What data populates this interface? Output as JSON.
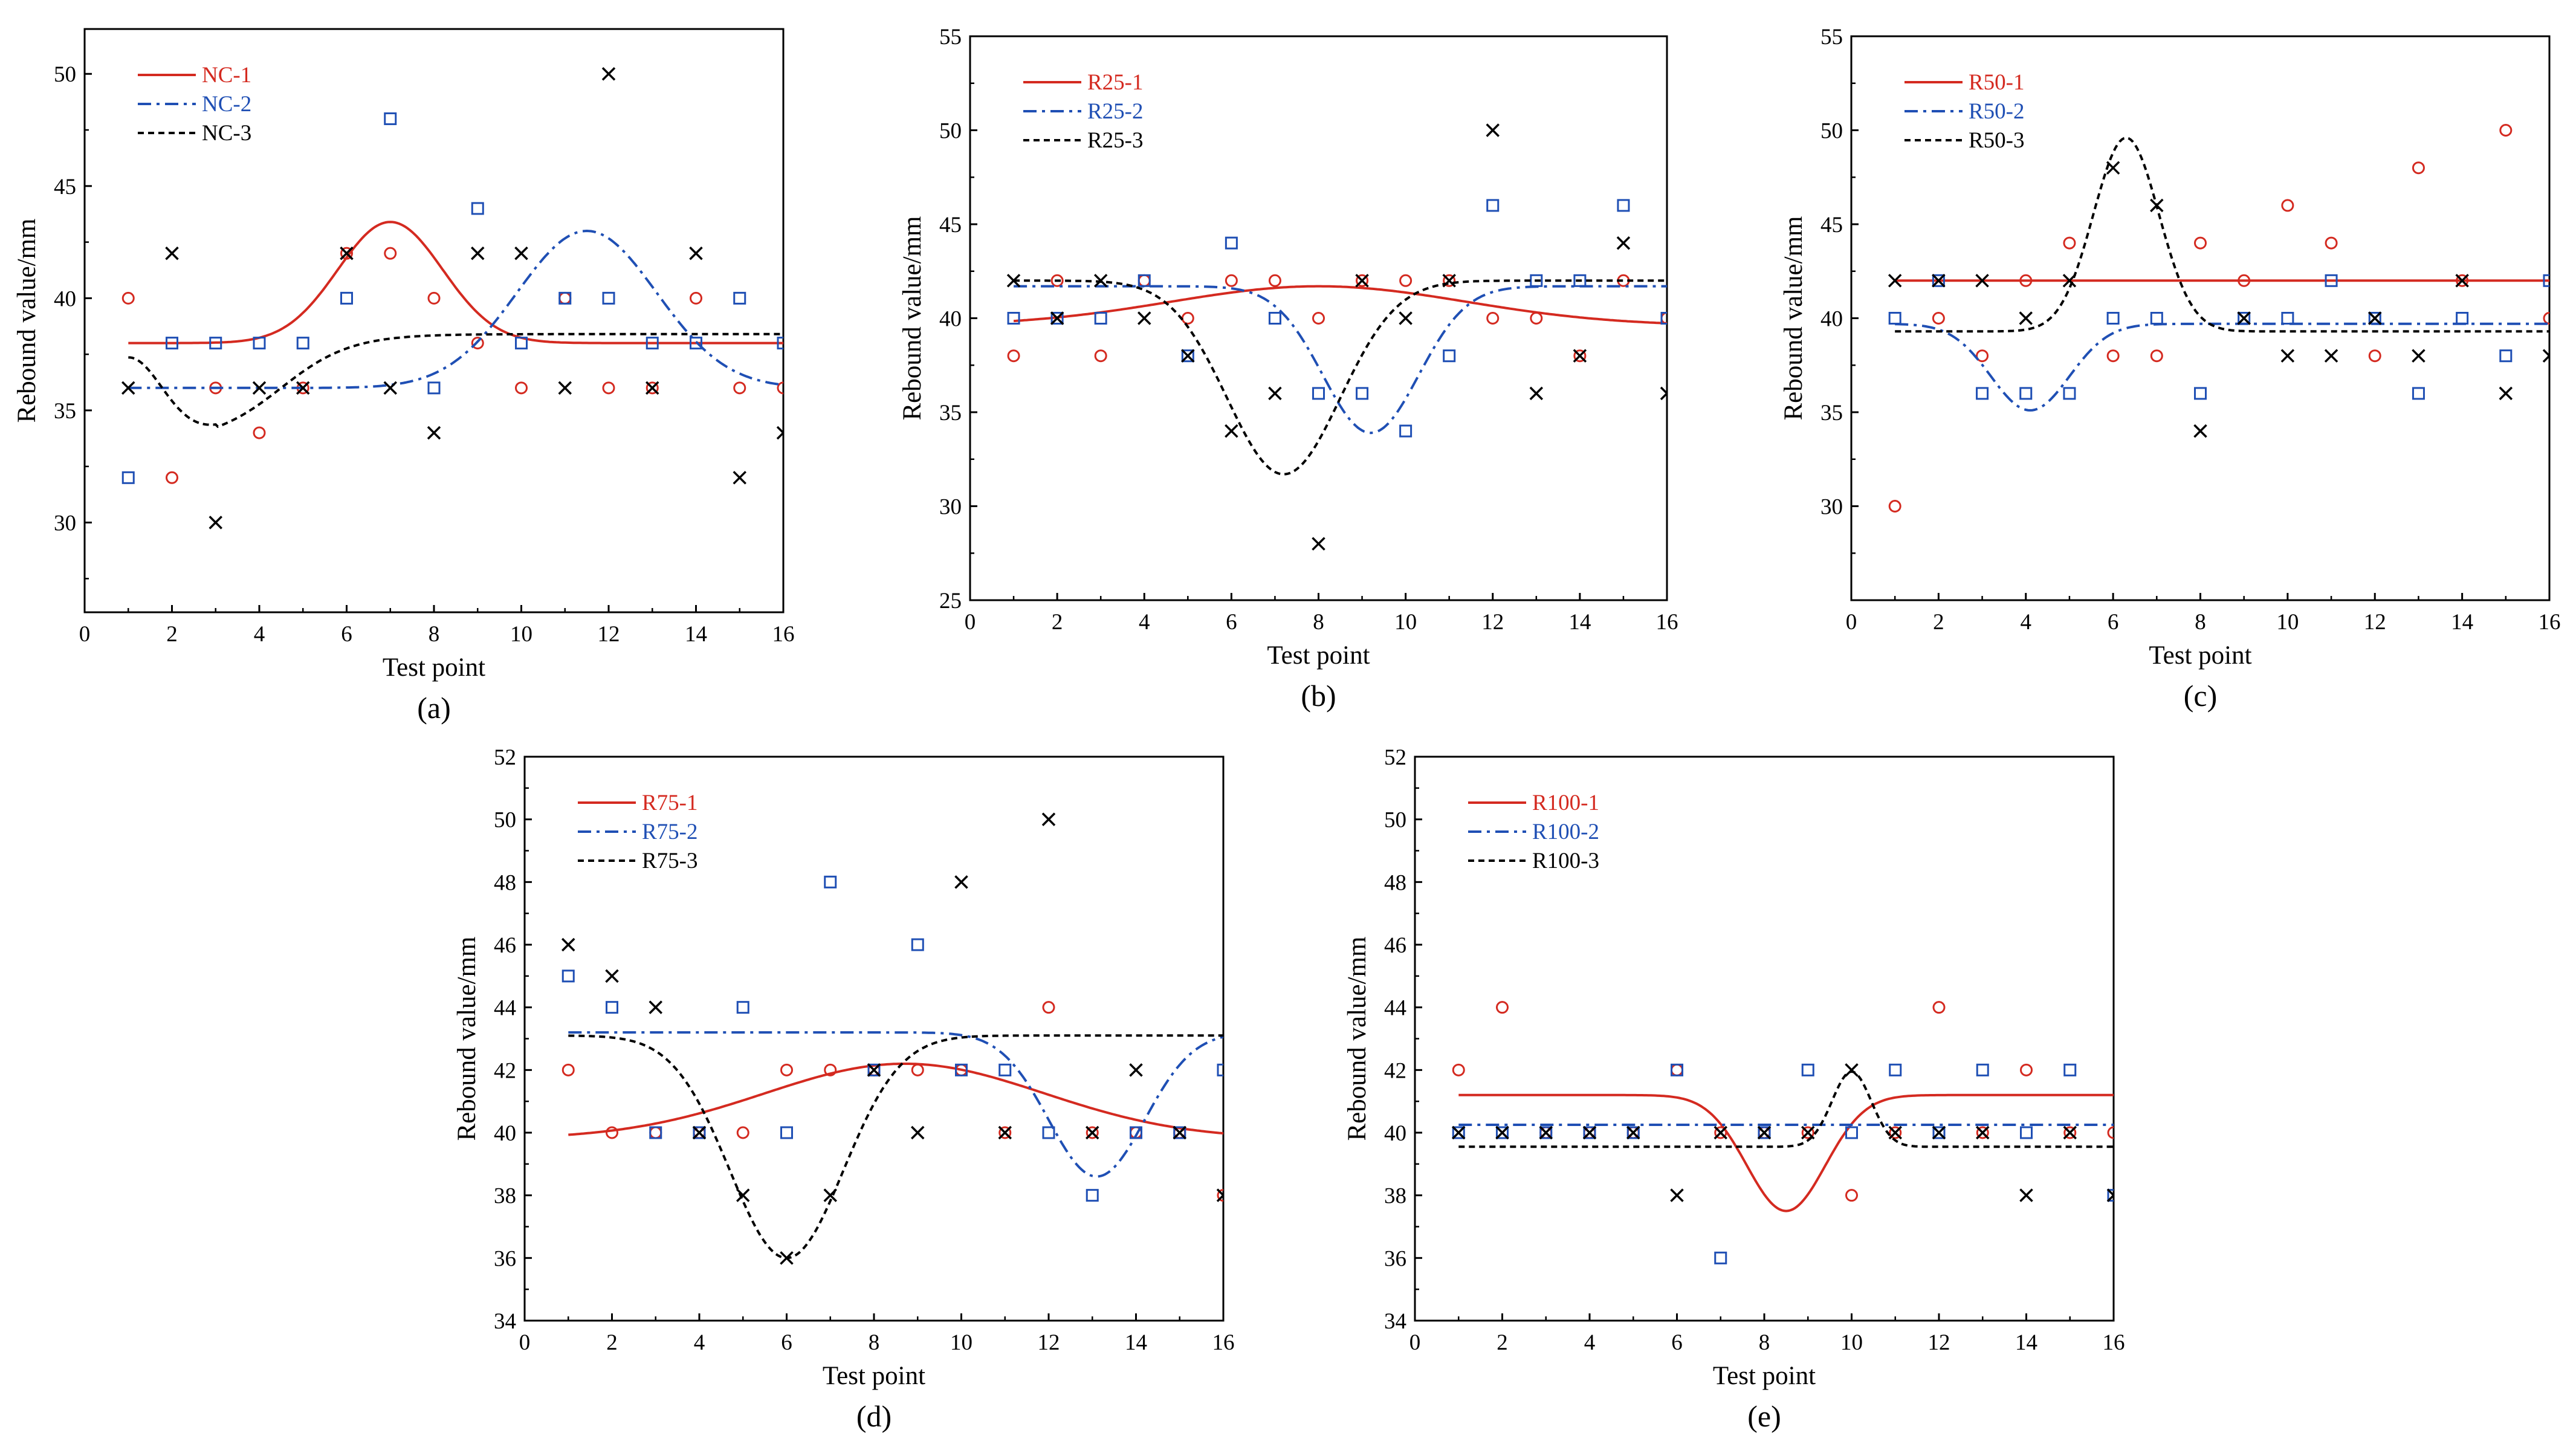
{
  "figure": {
    "colors": {
      "series1": "#d42a20",
      "series2": "#1f4fb4",
      "series3": "#000000"
    },
    "xlabel": "Test point",
    "ylabel": "Rebound value/mm"
  },
  "chart_data": [
    {
      "type": "scatter",
      "panel_label": "(a)",
      "xlabel": "Test point",
      "ylabel": "Rebound value/mm",
      "xlim": [
        0,
        16
      ],
      "ylim": [
        26,
        52
      ],
      "xticks": [
        "0",
        "2",
        "4",
        "6",
        "8",
        "10",
        "12",
        "14",
        "16"
      ],
      "yticks": [
        "30",
        "35",
        "40",
        "45",
        "50"
      ],
      "ytick_values": [
        30,
        35,
        40,
        45,
        50
      ],
      "legend_position": "top-left",
      "x": [
        1,
        2,
        3,
        4,
        5,
        6,
        7,
        8,
        9,
        10,
        11,
        12,
        13,
        14,
        15,
        16
      ],
      "series": [
        {
          "name": "NC-1",
          "marker": "circle",
          "line": "solid",
          "values": [
            40,
            32,
            36,
            34,
            36,
            42,
            42,
            40,
            38,
            36,
            40,
            36,
            36,
            40,
            36,
            36
          ],
          "fit": {
            "base": 38,
            "amp": 5.4,
            "center": 7,
            "width": 1.2
          }
        },
        {
          "name": "NC-2",
          "marker": "square",
          "line": "dashdot",
          "values": [
            32,
            38,
            38,
            38,
            38,
            40,
            48,
            36,
            44,
            38,
            40,
            40,
            38,
            38,
            40,
            38
          ],
          "fit": {
            "base": 36,
            "amp": 7,
            "center": 11.5,
            "width": 1.6
          }
        },
        {
          "name": "NC-3",
          "marker": "cross",
          "line": "dashed",
          "values": [
            36,
            42,
            30,
            36,
            36,
            42,
            36,
            34,
            42,
            42,
            36,
            50,
            36,
            42,
            32,
            34
          ],
          "fit": {
            "sigmoid_low": 33.6,
            "sigmoid_high": 38.4,
            "dip_center": 3,
            "sig_center": 4.5,
            "sig_scale": 0.8,
            "start": 37.3
          }
        }
      ]
    },
    {
      "type": "scatter",
      "panel_label": "(b)",
      "xlabel": "Test point",
      "ylabel": "Rebound value/mm",
      "xlim": [
        0,
        16
      ],
      "ylim": [
        25,
        55
      ],
      "xticks": [
        "0",
        "2",
        "4",
        "6",
        "8",
        "10",
        "12",
        "14",
        "16"
      ],
      "yticks": [
        "25",
        "30",
        "35",
        "40",
        "45",
        "50",
        "55"
      ],
      "ytick_values": [
        25,
        30,
        35,
        40,
        45,
        50,
        55
      ],
      "legend_position": "top-left",
      "x": [
        1,
        2,
        3,
        4,
        5,
        6,
        7,
        8,
        9,
        10,
        11,
        12,
        13,
        14,
        15,
        16
      ],
      "series": [
        {
          "name": "R25-1",
          "marker": "circle",
          "line": "solid",
          "values": [
            38,
            42,
            38,
            42,
            40,
            42,
            42,
            40,
            42,
            42,
            42,
            40,
            40,
            38,
            42,
            40
          ],
          "fit": {
            "base": 39.6,
            "amp": 2.1,
            "center": 8,
            "width": 3.4
          }
        },
        {
          "name": "R25-2",
          "marker": "square",
          "line": "dashdot",
          "values": [
            40,
            40,
            40,
            42,
            38,
            44,
            40,
            36,
            36,
            34,
            38,
            46,
            42,
            42,
            46,
            40
          ],
          "fit": {
            "base": 41.7,
            "amp": -7.8,
            "center": 9.2,
            "width": 1.1
          }
        },
        {
          "name": "R25-3",
          "marker": "cross",
          "line": "dashed",
          "values": [
            42,
            40,
            42,
            40,
            38,
            34,
            36,
            28,
            42,
            40,
            42,
            50,
            36,
            38,
            44,
            36
          ],
          "fit": {
            "base": 42,
            "amp": -10.3,
            "center": 7.2,
            "width": 1.3
          }
        }
      ]
    },
    {
      "type": "scatter",
      "panel_label": "(c)",
      "xlabel": "Test point",
      "ylabel": "Rebound value/mm",
      "xlim": [
        0,
        16
      ],
      "ylim": [
        25,
        55
      ],
      "xticks": [
        "0",
        "2",
        "4",
        "6",
        "8",
        "10",
        "12",
        "14",
        "16"
      ],
      "yticks": [
        "30",
        "35",
        "40",
        "45",
        "50",
        "55"
      ],
      "ytick_values": [
        30,
        35,
        40,
        45,
        50,
        55
      ],
      "legend_position": "top-left",
      "x": [
        1,
        2,
        3,
        4,
        5,
        6,
        7,
        8,
        9,
        10,
        11,
        12,
        13,
        14,
        15,
        16
      ],
      "series": [
        {
          "name": "R50-1",
          "marker": "circle",
          "line": "solid",
          "values": [
            30,
            40,
            38,
            42,
            44,
            38,
            38,
            44,
            42,
            46,
            44,
            38,
            48,
            42,
            50,
            40
          ],
          "fit": {
            "base": 42,
            "amp": 0,
            "center": 8,
            "width": 1
          }
        },
        {
          "name": "R50-2",
          "marker": "square",
          "line": "dashdot",
          "values": [
            40,
            42,
            36,
            36,
            36,
            40,
            40,
            36,
            40,
            40,
            42,
            40,
            36,
            40,
            38,
            42
          ],
          "fit": {
            "base": 39.7,
            "amp": -4.6,
            "center": 4.1,
            "width": 0.9
          }
        },
        {
          "name": "R50-3",
          "marker": "cross",
          "line": "dashed",
          "values": [
            42,
            42,
            42,
            40,
            42,
            48,
            46,
            34,
            40,
            38,
            38,
            40,
            38,
            42,
            36,
            38
          ],
          "fit": {
            "base": 39.3,
            "amp": 10.3,
            "center": 6.3,
            "width": 0.75
          }
        }
      ]
    },
    {
      "type": "scatter",
      "panel_label": "(d)",
      "xlabel": "Test point",
      "ylabel": "Rebound value/mm",
      "xlim": [
        0,
        16
      ],
      "ylim": [
        34,
        52
      ],
      "xticks": [
        "0",
        "2",
        "4",
        "6",
        "8",
        "10",
        "12",
        "14",
        "16"
      ],
      "yticks": [
        "34",
        "36",
        "38",
        "40",
        "42",
        "44",
        "46",
        "48",
        "50",
        "52"
      ],
      "ytick_values": [
        34,
        36,
        38,
        40,
        42,
        44,
        46,
        48,
        50,
        52
      ],
      "legend_position": "top-left",
      "x": [
        1,
        2,
        3,
        4,
        5,
        6,
        7,
        8,
        9,
        10,
        11,
        12,
        13,
        14,
        15,
        16
      ],
      "series": [
        {
          "name": "R75-1",
          "marker": "circle",
          "line": "solid",
          "values": [
            42,
            40,
            40,
            40,
            40,
            42,
            42,
            42,
            42,
            42,
            40,
            44,
            40,
            40,
            40,
            38
          ],
          "fit": {
            "base": 39.8,
            "amp": 2.4,
            "center": 8.7,
            "width": 3.2
          }
        },
        {
          "name": "R75-2",
          "marker": "square",
          "line": "dashdot",
          "values": [
            45,
            44,
            40,
            40,
            44,
            40,
            48,
            42,
            46,
            42,
            42,
            40,
            38,
            40,
            40,
            42
          ],
          "fit": {
            "base": 43.2,
            "amp": -4.6,
            "center": 13.1,
            "width": 1.1
          }
        },
        {
          "name": "R75-3",
          "marker": "cross",
          "line": "dashed",
          "values": [
            46,
            45,
            44,
            40,
            38,
            36,
            38,
            42,
            40,
            48,
            40,
            50,
            40,
            42,
            40,
            38
          ],
          "fit": {
            "base": 43.1,
            "amp": -7.1,
            "center": 6,
            "width": 1.3
          }
        }
      ]
    },
    {
      "type": "scatter",
      "panel_label": "(e)",
      "xlabel": "Test point",
      "ylabel": "Rebound value/mm",
      "xlim": [
        0,
        16
      ],
      "ylim": [
        34,
        52
      ],
      "xticks": [
        "0",
        "2",
        "4",
        "6",
        "8",
        "10",
        "12",
        "14",
        "16"
      ],
      "yticks": [
        "34",
        "36",
        "38",
        "40",
        "42",
        "44",
        "46",
        "48",
        "50",
        "52"
      ],
      "ytick_values": [
        34,
        36,
        38,
        40,
        42,
        44,
        46,
        48,
        50,
        52
      ],
      "legend_position": "top-left",
      "x": [
        1,
        2,
        3,
        4,
        5,
        6,
        7,
        8,
        9,
        10,
        11,
        12,
        13,
        14,
        15,
        16
      ],
      "series": [
        {
          "name": "R100-1",
          "marker": "circle",
          "line": "solid",
          "values": [
            42,
            44,
            40,
            40,
            40,
            42,
            40,
            40,
            40,
            38,
            40,
            44,
            40,
            42,
            40,
            40
          ],
          "fit": {
            "base": 41.2,
            "amp": -3.7,
            "center": 8.5,
            "width": 0.9
          }
        },
        {
          "name": "R100-2",
          "marker": "square",
          "line": "dashdot",
          "values": [
            40,
            40,
            40,
            40,
            40,
            42,
            36,
            40,
            42,
            40,
            42,
            40,
            42,
            40,
            42,
            38
          ],
          "fit": {
            "base": 40.25,
            "amp": 0,
            "center": 8,
            "width": 1
          }
        },
        {
          "name": "R100-3",
          "marker": "cross",
          "line": "dashed",
          "values": [
            40,
            40,
            40,
            40,
            40,
            38,
            40,
            40,
            40,
            42,
            40,
            40,
            40,
            38,
            40,
            38
          ],
          "fit": {
            "base": 39.55,
            "amp": 2.4,
            "center": 10,
            "width": 0.45
          }
        }
      ]
    }
  ]
}
